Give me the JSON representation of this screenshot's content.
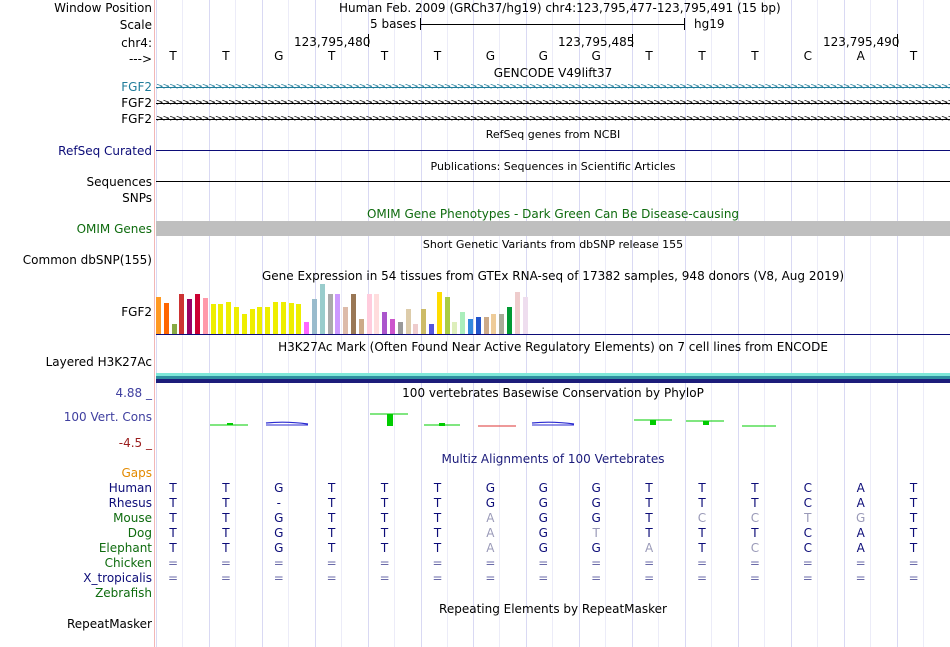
{
  "header": {
    "window_position_label": "Window Position",
    "window_position_value": "Human Feb. 2009 (GRCh37/hg19)   chr4:123,795,477-123,795,491 (15 bp)",
    "scale_label": "Scale",
    "scale_text": "5 bases",
    "assembly": "hg19",
    "chrom_label": "chr4:",
    "ticks": [
      "123,795,480",
      "123,795,485",
      "123,795,490"
    ],
    "strand_label": "--->",
    "bases": [
      "T",
      "T",
      "G",
      "T",
      "T",
      "T",
      "G",
      "G",
      "G",
      "T",
      "T",
      "T",
      "C",
      "A",
      "T"
    ]
  },
  "tracks": {
    "gencode": {
      "title": "GENCODE V49lift37",
      "genes": [
        "FGF2",
        "FGF2",
        "FGF2"
      ],
      "colors": [
        "#1f7c9a",
        "#000000",
        "#000000"
      ]
    },
    "refseq": {
      "title": "RefSeq genes from NCBI",
      "label": "RefSeq Curated",
      "color": "#0c0c78"
    },
    "publications": {
      "title": "Publications: Sequences in Scientific Articles",
      "label": "Sequences"
    },
    "snps_label": "SNPs",
    "omim": {
      "title": "OMIM Gene Phenotypes - Dark Green Can Be Disease-causing",
      "label": "OMIM Genes",
      "color": "#0e6b0e"
    },
    "dbsnp": {
      "title": "Short Genetic Variants from dbSNP release 155",
      "label": "Common dbSNP(155)"
    },
    "gtex": {
      "title": "Gene Expression in 54 tissues from GTEx RNA-seq of 17382 samples, 948 donors (V8, Aug 2019)",
      "label": "FGF2",
      "bars": [
        {
          "h": 0.75,
          "c": "#ff9922"
        },
        {
          "h": 0.62,
          "c": "#ff6600"
        },
        {
          "h": 0.2,
          "c": "#88aa44"
        },
        {
          "h": 0.8,
          "c": "#cc3333"
        },
        {
          "h": 0.7,
          "c": "#990066"
        },
        {
          "h": 0.8,
          "c": "#cc0033"
        },
        {
          "h": 0.72,
          "c": "#ff99aa"
        },
        {
          "h": 0.6,
          "c": "#eeee00"
        },
        {
          "h": 0.6,
          "c": "#eeee00"
        },
        {
          "h": 0.65,
          "c": "#eeee00"
        },
        {
          "h": 0.55,
          "c": "#eeee00"
        },
        {
          "h": 0.4,
          "c": "#eeee00"
        },
        {
          "h": 0.5,
          "c": "#eeee00"
        },
        {
          "h": 0.55,
          "c": "#eeee00"
        },
        {
          "h": 0.55,
          "c": "#eeee00"
        },
        {
          "h": 0.65,
          "c": "#eeee00"
        },
        {
          "h": 0.65,
          "c": "#eeee00"
        },
        {
          "h": 0.62,
          "c": "#eeee00"
        },
        {
          "h": 0.6,
          "c": "#eeee00"
        },
        {
          "h": 0.25,
          "c": "#ff66ff"
        },
        {
          "h": 0.7,
          "c": "#99bbcc"
        },
        {
          "h": 1.0,
          "c": "#99cccc"
        },
        {
          "h": 0.8,
          "c": "#aaaaaa"
        },
        {
          "h": 0.8,
          "c": "#cc99ff"
        },
        {
          "h": 0.55,
          "c": "#ddbbaa"
        },
        {
          "h": 0.8,
          "c": "#997755"
        },
        {
          "h": 0.3,
          "c": "#ccaa88"
        },
        {
          "h": 0.8,
          "c": "#ffccdd"
        },
        {
          "h": 0.8,
          "c": "#ffdddd"
        },
        {
          "h": 0.45,
          "c": "#aa55cc"
        },
        {
          "h": 0.3,
          "c": "#cc55cc"
        },
        {
          "h": 0.25,
          "c": "#999999"
        },
        {
          "h": 0.5,
          "c": "#ddccaa"
        },
        {
          "h": 0.2,
          "c": "#eecccc"
        },
        {
          "h": 0.5,
          "c": "#ccbb66"
        },
        {
          "h": 0.2,
          "c": "#5555dd"
        },
        {
          "h": 0.85,
          "c": "#ffdd00"
        },
        {
          "h": 0.75,
          "c": "#aacc44"
        },
        {
          "h": 0.25,
          "c": "#ddeebb"
        },
        {
          "h": 0.45,
          "c": "#aaeebb"
        },
        {
          "h": 0.3,
          "c": "#3388dd"
        },
        {
          "h": 0.35,
          "c": "#2255cc"
        },
        {
          "h": 0.35,
          "c": "#ccaa88"
        },
        {
          "h": 0.4,
          "c": "#eecc99"
        },
        {
          "h": 0.4,
          "c": "#aaaa99"
        },
        {
          "h": 0.55,
          "c": "#009933"
        },
        {
          "h": 0.85,
          "c": "#eecccc"
        },
        {
          "h": 0.75,
          "c": "#eeddee"
        }
      ]
    },
    "h3k27ac": {
      "title": "H3K27Ac Mark (Often Found Near Active Regulatory Elements) on 7 cell lines from ENCODE",
      "label": "Layered H3K27Ac"
    },
    "phylop": {
      "title": "100 vertebrates Basewise Conservation by PhyloP",
      "label": "100 Vert. Cons",
      "max": "4.88 _",
      "min": "-4.5 _",
      "title_color": "#3f3f9f"
    },
    "multiz": {
      "title": "Multiz Alignments of 100 Vertebrates",
      "title_color": "#1a1a7a",
      "gaps_label": "Gaps",
      "species": [
        {
          "name": "Human",
          "color": "#0c0c78",
          "seq": [
            "T",
            "T",
            "G",
            "T",
            "T",
            "T",
            "G",
            "G",
            "G",
            "T",
            "T",
            "T",
            "C",
            "A",
            "T"
          ]
        },
        {
          "name": "Rhesus",
          "color": "#0c0c78",
          "seq": [
            "T",
            "T",
            "-",
            "T",
            "T",
            "T",
            "G",
            "G",
            "G",
            "T",
            "T",
            "T",
            "C",
            "A",
            "T"
          ]
        },
        {
          "name": "Mouse",
          "color": "#0e6b0e",
          "seq": [
            "T",
            "T",
            "G",
            "T",
            "T",
            "T",
            "A",
            "G",
            "G",
            "T",
            "C",
            "C",
            "T",
            "G",
            "T"
          ]
        },
        {
          "name": "Dog",
          "color": "#0e6b0e",
          "seq": [
            "T",
            "T",
            "G",
            "T",
            "T",
            "T",
            "A",
            "G",
            "T",
            "T",
            "T",
            "T",
            "C",
            "A",
            "T"
          ]
        },
        {
          "name": "Elephant",
          "color": "#0e6b0e",
          "seq": [
            "T",
            "T",
            "G",
            "T",
            "T",
            "T",
            "A",
            "G",
            "G",
            "A",
            "T",
            "C",
            "C",
            "A",
            "T"
          ]
        },
        {
          "name": "Chicken",
          "color": "#0e6b0e",
          "seq": [
            "=",
            "=",
            "=",
            "=",
            "=",
            "=",
            "=",
            "=",
            "=",
            "=",
            "=",
            "=",
            "=",
            "=",
            "="
          ]
        },
        {
          "name": "X_tropicalis",
          "color": "#0c0c78",
          "seq": [
            "=",
            "=",
            "=",
            "=",
            "=",
            "=",
            "=",
            "=",
            "=",
            "=",
            "=",
            "=",
            "=",
            "=",
            "="
          ]
        },
        {
          "name": "Zebrafish",
          "color": "#0e6b0e",
          "seq": []
        }
      ]
    },
    "repeatmasker": {
      "title": "Repeating Elements by RepeatMasker",
      "label": "RepeatMasker"
    }
  }
}
